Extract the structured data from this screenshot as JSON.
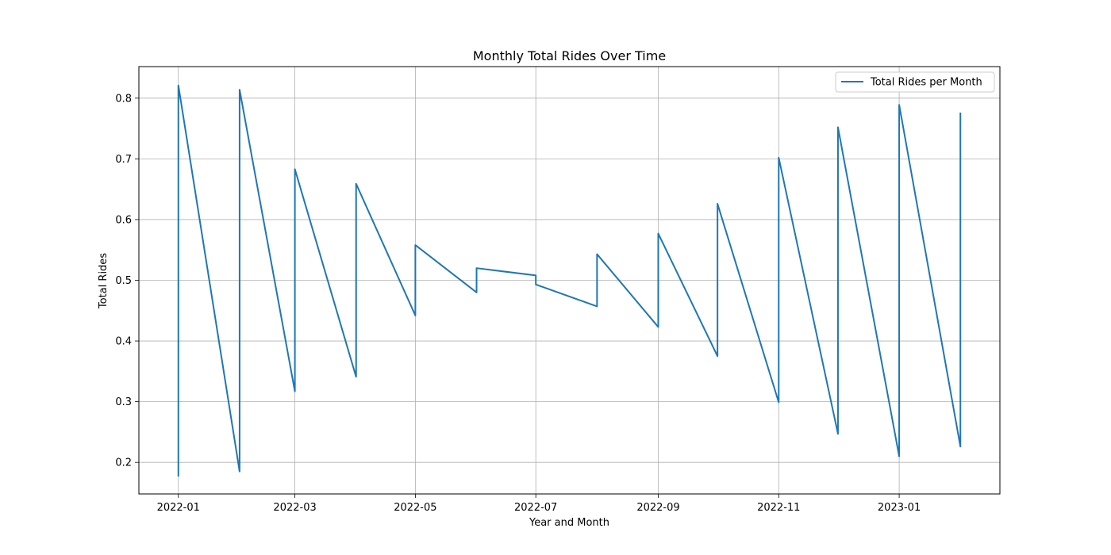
{
  "chart_data": {
    "type": "line",
    "title": "Monthly Total Rides Over Time",
    "xlabel": "Year and Month",
    "ylabel": "Total Rides",
    "xlim": [
      "2021-12-12",
      "2023-02-21"
    ],
    "ylim": [
      0.148,
      0.852
    ],
    "x_ticks": [
      "2022-01-01",
      "2022-03-01",
      "2022-05-01",
      "2022-07-01",
      "2022-09-01",
      "2022-11-01",
      "2023-01-01"
    ],
    "x_tick_labels": [
      "2022-01",
      "2022-03",
      "2022-05",
      "2022-07",
      "2022-09",
      "2022-11",
      "2023-01"
    ],
    "y_ticks": [
      0.2,
      0.3,
      0.4,
      0.5,
      0.6,
      0.7,
      0.8
    ],
    "y_tick_labels": [
      "0.2",
      "0.3",
      "0.4",
      "0.5",
      "0.6",
      "0.7",
      "0.8"
    ],
    "grid": true,
    "legend_position": "top-right",
    "series": [
      {
        "name": "Total Rides per Month",
        "color": "#1f77b4",
        "points": [
          {
            "x": "2022-01-01",
            "y": 0.178
          },
          {
            "x": "2022-01-01",
            "y": 0.821
          },
          {
            "x": "2022-02-01",
            "y": 0.185
          },
          {
            "x": "2022-02-01",
            "y": 0.814
          },
          {
            "x": "2022-03-01",
            "y": 0.317
          },
          {
            "x": "2022-03-01",
            "y": 0.683
          },
          {
            "x": "2022-04-01",
            "y": 0.341
          },
          {
            "x": "2022-04-01",
            "y": 0.659
          },
          {
            "x": "2022-05-01",
            "y": 0.442
          },
          {
            "x": "2022-05-01",
            "y": 0.558
          },
          {
            "x": "2022-06-01",
            "y": 0.48
          },
          {
            "x": "2022-06-01",
            "y": 0.52
          },
          {
            "x": "2022-07-01",
            "y": 0.508
          },
          {
            "x": "2022-07-01",
            "y": 0.493
          },
          {
            "x": "2022-08-01",
            "y": 0.457
          },
          {
            "x": "2022-08-01",
            "y": 0.543
          },
          {
            "x": "2022-09-01",
            "y": 0.423
          },
          {
            "x": "2022-09-01",
            "y": 0.577
          },
          {
            "x": "2022-10-01",
            "y": 0.375
          },
          {
            "x": "2022-10-01",
            "y": 0.626
          },
          {
            "x": "2022-11-01",
            "y": 0.299
          },
          {
            "x": "2022-11-01",
            "y": 0.702
          },
          {
            "x": "2022-12-01",
            "y": 0.247
          },
          {
            "x": "2022-12-01",
            "y": 0.752
          },
          {
            "x": "2023-01-01",
            "y": 0.21
          },
          {
            "x": "2023-01-01",
            "y": 0.789
          },
          {
            "x": "2023-02-01",
            "y": 0.226
          },
          {
            "x": "2023-02-01",
            "y": 0.775
          }
        ]
      }
    ]
  }
}
